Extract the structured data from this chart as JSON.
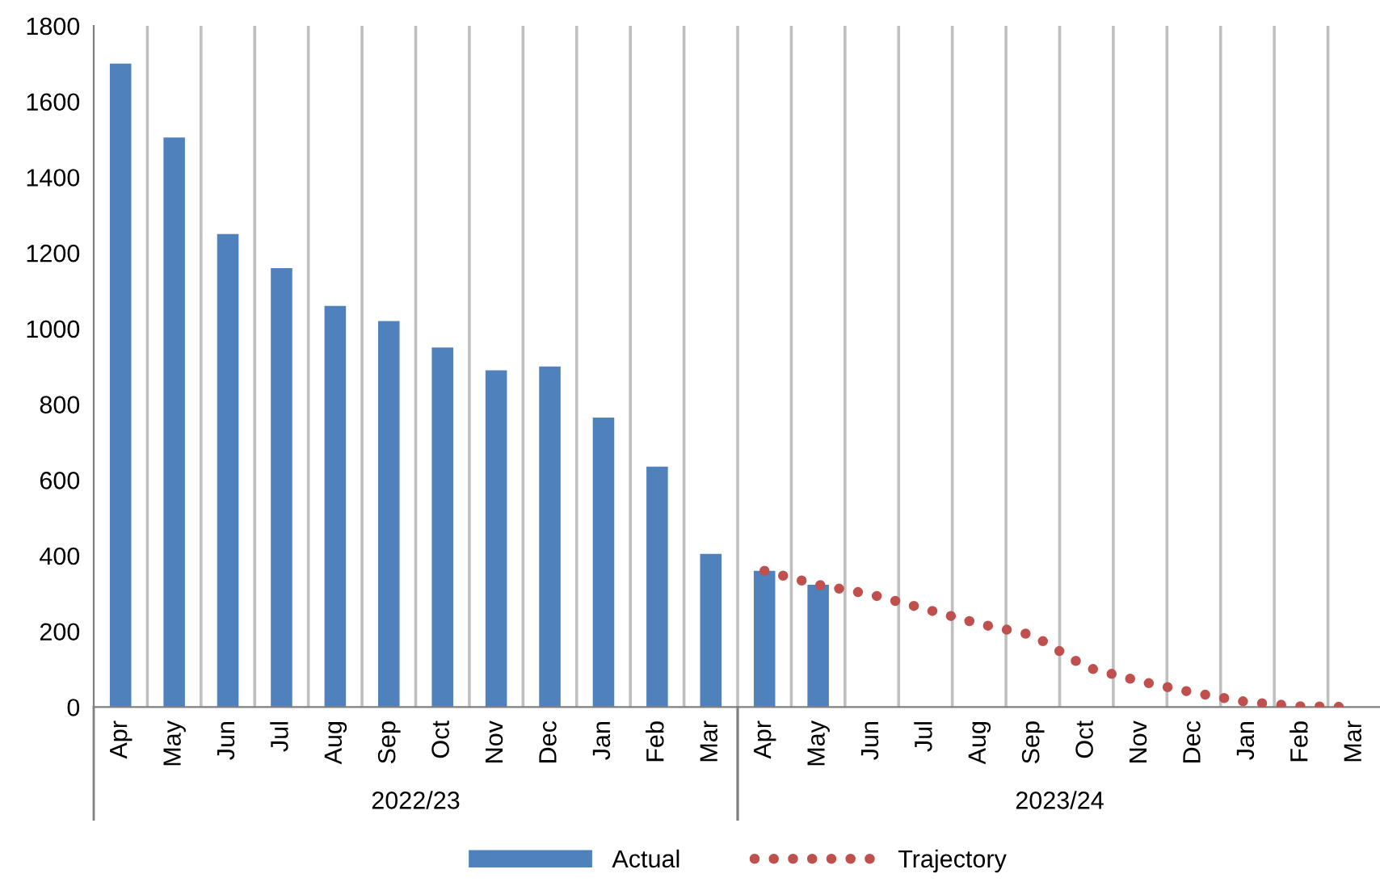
{
  "chart_data": {
    "type": "bar",
    "categories": [
      "Apr",
      "May",
      "Jun",
      "Jul",
      "Aug",
      "Sep",
      "Oct",
      "Nov",
      "Dec",
      "Jan",
      "Feb",
      "Mar",
      "Apr",
      "May",
      "Jun",
      "Jul",
      "Aug",
      "Sep",
      "Oct",
      "Nov",
      "Dec",
      "Jan",
      "Feb",
      "Mar"
    ],
    "series": [
      {
        "name": "Actual",
        "color": "#4f81bd",
        "values": [
          1700,
          1505,
          1250,
          1160,
          1060,
          1020,
          950,
          890,
          900,
          765,
          635,
          405,
          360,
          323,
          null,
          null,
          null,
          null,
          null,
          null,
          null,
          null,
          null,
          null
        ]
      },
      {
        "name": "Trajectory",
        "type": "line",
        "color": "#c0504d",
        "line_style": "dotted",
        "values": [
          null,
          null,
          null,
          null,
          null,
          null,
          null,
          null,
          null,
          null,
          null,
          null,
          360,
          323,
          297,
          259,
          220,
          190,
          105,
          68,
          38,
          13,
          2,
          0
        ]
      }
    ],
    "ylim": [
      0,
      1800
    ],
    "yticks": [
      0,
      200,
      400,
      600,
      800,
      1000,
      1200,
      1400,
      1600,
      1800
    ],
    "grid": "x",
    "legend": "bottom",
    "annotations": [
      "2022/23",
      "2023/24"
    ]
  }
}
